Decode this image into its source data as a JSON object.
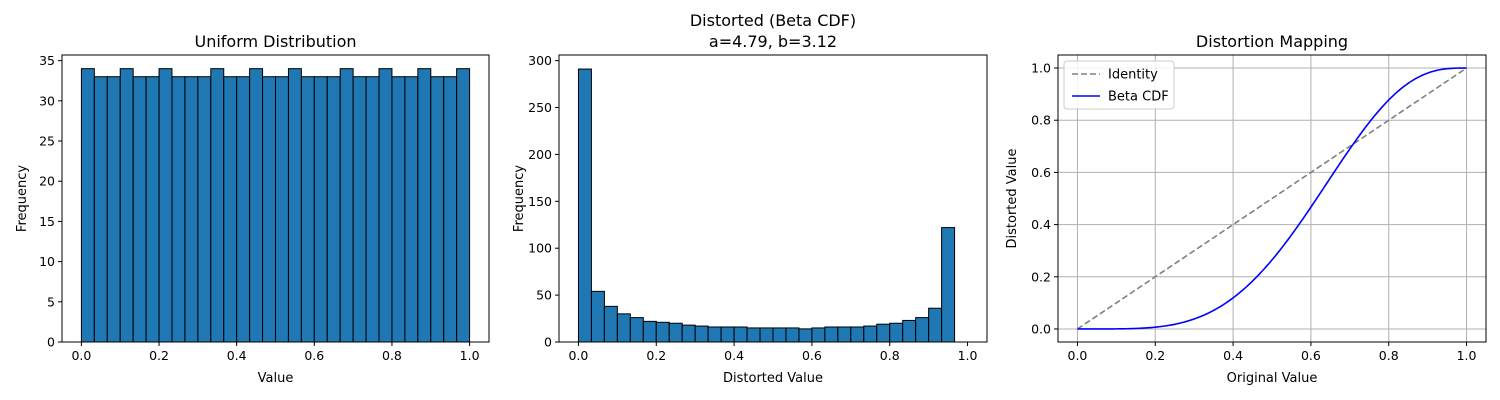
{
  "chart_data": [
    {
      "type": "bar",
      "title": "Uniform Distribution",
      "xlabel": "Value",
      "ylabel": "Frequency",
      "xlim": [
        -0.05,
        1.05
      ],
      "ylim": [
        0,
        35.7
      ],
      "xticks": [
        "0.0",
        "0.2",
        "0.4",
        "0.6",
        "0.8",
        "1.0"
      ],
      "yticks": [
        "0",
        "5",
        "10",
        "15",
        "20",
        "25",
        "30",
        "35"
      ],
      "bin_range": [
        0,
        1
      ],
      "bins": 30,
      "values": [
        34,
        33,
        33,
        34,
        33,
        33,
        34,
        33,
        33,
        33,
        34,
        33,
        33,
        34,
        33,
        33,
        34,
        33,
        33,
        33,
        34,
        33,
        33,
        34,
        33,
        33,
        34,
        33,
        33,
        34
      ],
      "color": "#1f77b4",
      "edgecolor": "#000000",
      "grid": false
    },
    {
      "type": "bar",
      "title": [
        "Distorted (Beta CDF)",
        "a=4.79, b=3.12"
      ],
      "xlabel": "Distorted Value",
      "ylabel": "Frequency",
      "xlim": [
        -0.05,
        1.05
      ],
      "ylim": [
        0,
        306
      ],
      "xticks": [
        "0.0",
        "0.2",
        "0.4",
        "0.6",
        "0.8",
        "1.0"
      ],
      "yticks": [
        "0",
        "50",
        "100",
        "150",
        "200",
        "250",
        "300"
      ],
      "bin_range": [
        0,
        1
      ],
      "bins": 30,
      "values": [
        291,
        54,
        38,
        30,
        26,
        22,
        21,
        20,
        18,
        17,
        16,
        16,
        16,
        15,
        15,
        15,
        15,
        14,
        15,
        16,
        16,
        16,
        17,
        19,
        20,
        23,
        26,
        36,
        122,
        0
      ],
      "color": "#1f77b4",
      "edgecolor": "#000000",
      "grid": false
    },
    {
      "type": "line",
      "title": "Distortion Mapping",
      "xlabel": "Original Value",
      "ylabel": "Distorted Value",
      "xlim": [
        -0.05,
        1.05
      ],
      "ylim": [
        -0.05,
        1.05
      ],
      "xticks": [
        "0.0",
        "0.2",
        "0.4",
        "0.6",
        "0.8",
        "1.0"
      ],
      "yticks": [
        "0.0",
        "0.2",
        "0.4",
        "0.6",
        "0.8",
        "1.0"
      ],
      "grid": true,
      "legend_position": "top-left",
      "beta_params": {
        "a": 4.79,
        "b": 3.12
      },
      "series": [
        {
          "name": "Identity",
          "kind": "identity",
          "color": "#808080",
          "dashed": true,
          "x": [
            0,
            1
          ],
          "y": [
            0,
            1
          ]
        },
        {
          "name": "Beta CDF",
          "kind": "beta_cdf",
          "color": "#0000ff",
          "dashed": false
        }
      ]
    }
  ]
}
